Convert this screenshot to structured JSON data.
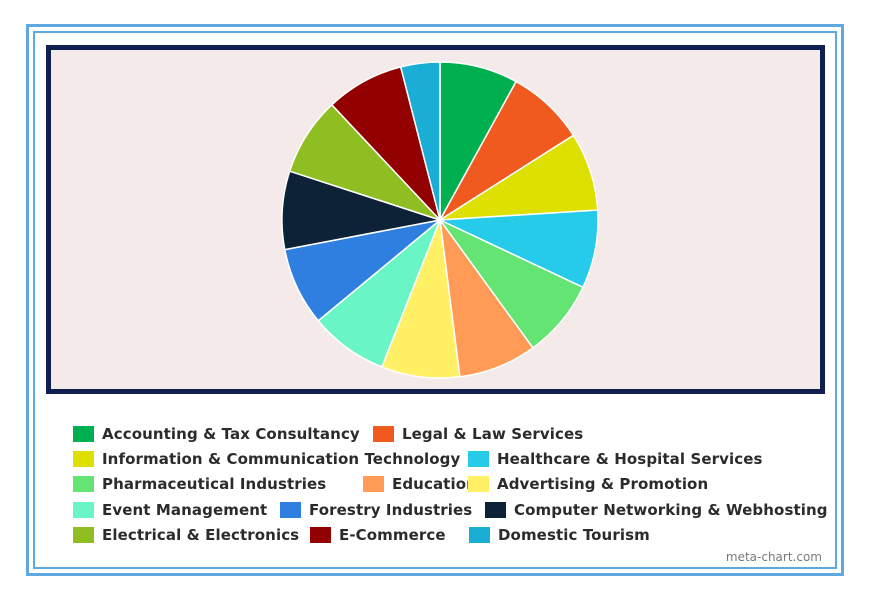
{
  "chart_data": {
    "type": "pie",
    "slices": [
      {
        "label": "Accounting & Tax Consultancy",
        "value": 1,
        "color": "#00b050"
      },
      {
        "label": "Legal & Law Services",
        "value": 1,
        "color": "#f05a1e"
      },
      {
        "label": "Information & Communication Technology",
        "value": 1,
        "color": "#dde000"
      },
      {
        "label": "Healthcare & Hospital Services",
        "value": 1,
        "color": "#25cbe8"
      },
      {
        "label": "Pharmaceutical Industries",
        "value": 1,
        "color": "#64e473"
      },
      {
        "label": "Education",
        "value": 1,
        "color": "#ff9a57"
      },
      {
        "label": "Advertising & Promotion",
        "value": 1,
        "color": "#fff066"
      },
      {
        "label": "Event Management",
        "value": 1,
        "color": "#6af5c6"
      },
      {
        "label": "Forestry Industries",
        "value": 1,
        "color": "#2f7fe0"
      },
      {
        "label": "Computer Networking & Webhosting",
        "value": 1,
        "color": "#0d2137"
      },
      {
        "label": "Electrical & Electronics",
        "value": 1,
        "color": "#8fbe22"
      },
      {
        "label": "E-Commerce",
        "value": 1,
        "color": "#920000"
      },
      {
        "label": "Domestic Tourism",
        "value": 0.5,
        "color": "#1aaed4"
      }
    ],
    "legend_position": "bottom"
  },
  "credit": "meta-chart.com"
}
